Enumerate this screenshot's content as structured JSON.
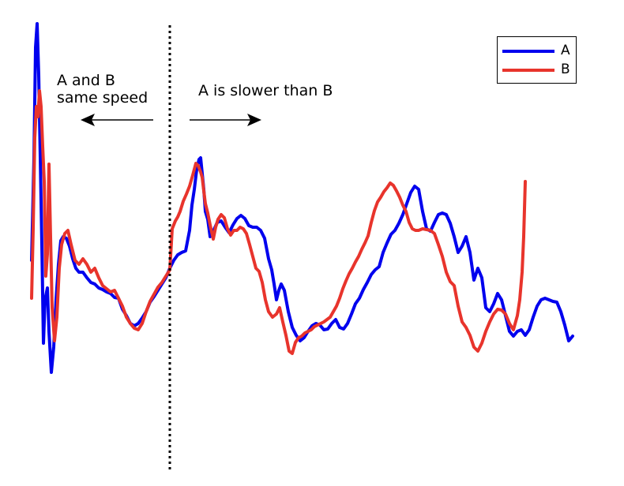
{
  "chart_data": {
    "type": "line",
    "title": "",
    "xlabel": "",
    "ylabel": "",
    "grid": false,
    "legend_position": "top-right",
    "series": [
      {
        "name": "A",
        "color": "#0000ee",
        "points": [
          [
            40,
            330
          ],
          [
            43,
            200
          ],
          [
            45,
            60
          ],
          [
            47,
            30
          ],
          [
            49,
            95
          ],
          [
            51,
            200
          ],
          [
            53,
            310
          ],
          [
            55,
            435
          ],
          [
            57,
            380
          ],
          [
            60,
            365
          ],
          [
            62,
            420
          ],
          [
            65,
            472
          ],
          [
            68,
            440
          ],
          [
            71,
            380
          ],
          [
            74,
            335
          ],
          [
            77,
            305
          ],
          [
            80,
            300
          ],
          [
            84,
            302
          ],
          [
            88,
            312
          ],
          [
            92,
            328
          ],
          [
            96,
            340
          ],
          [
            100,
            345
          ],
          [
            105,
            345
          ],
          [
            110,
            352
          ],
          [
            115,
            358
          ],
          [
            120,
            360
          ],
          [
            125,
            365
          ],
          [
            130,
            367
          ],
          [
            135,
            370
          ],
          [
            140,
            372
          ],
          [
            145,
            377
          ],
          [
            150,
            378
          ],
          [
            155,
            392
          ],
          [
            160,
            400
          ],
          [
            165,
            410
          ],
          [
            170,
            413
          ],
          [
            175,
            410
          ],
          [
            180,
            403
          ],
          [
            185,
            395
          ],
          [
            190,
            383
          ],
          [
            195,
            376
          ],
          [
            200,
            368
          ],
          [
            205,
            360
          ],
          [
            210,
            352
          ],
          [
            215,
            340
          ],
          [
            220,
            330
          ],
          [
            225,
            323
          ],
          [
            230,
            320
          ],
          [
            235,
            318
          ],
          [
            240,
            292
          ],
          [
            243,
            260
          ],
          [
            246,
            240
          ],
          [
            249,
            215
          ],
          [
            252,
            202
          ],
          [
            254,
            200
          ],
          [
            256,
            220
          ],
          [
            258,
            240
          ],
          [
            260,
            268
          ],
          [
            263,
            278
          ],
          [
            266,
            300
          ],
          [
            270,
            293
          ],
          [
            275,
            282
          ],
          [
            280,
            280
          ],
          [
            285,
            288
          ],
          [
            290,
            295
          ],
          [
            295,
            285
          ],
          [
            300,
            277
          ],
          [
            305,
            273
          ],
          [
            310,
            277
          ],
          [
            315,
            286
          ],
          [
            320,
            288
          ],
          [
            325,
            288
          ],
          [
            330,
            292
          ],
          [
            335,
            302
          ],
          [
            340,
            328
          ],
          [
            344,
            342
          ],
          [
            347,
            360
          ],
          [
            350,
            380
          ],
          [
            353,
            368
          ],
          [
            356,
            360
          ],
          [
            360,
            368
          ],
          [
            365,
            395
          ],
          [
            370,
            415
          ],
          [
            375,
            425
          ],
          [
            380,
            432
          ],
          [
            385,
            428
          ],
          [
            390,
            420
          ],
          [
            395,
            413
          ],
          [
            400,
            410
          ],
          [
            405,
            412
          ],
          [
            410,
            418
          ],
          [
            415,
            417
          ],
          [
            420,
            410
          ],
          [
            425,
            405
          ],
          [
            430,
            415
          ],
          [
            435,
            417
          ],
          [
            440,
            410
          ],
          [
            445,
            398
          ],
          [
            450,
            385
          ],
          [
            455,
            378
          ],
          [
            460,
            367
          ],
          [
            465,
            358
          ],
          [
            470,
            348
          ],
          [
            475,
            342
          ],
          [
            480,
            338
          ],
          [
            485,
            320
          ],
          [
            490,
            308
          ],
          [
            495,
            297
          ],
          [
            500,
            292
          ],
          [
            505,
            283
          ],
          [
            510,
            272
          ],
          [
            515,
            258
          ],
          [
            520,
            244
          ],
          [
            525,
            236
          ],
          [
            530,
            240
          ],
          [
            535,
            268
          ],
          [
            540,
            290
          ],
          [
            545,
            293
          ],
          [
            550,
            282
          ],
          [
            555,
            272
          ],
          [
            560,
            270
          ],
          [
            565,
            272
          ],
          [
            570,
            283
          ],
          [
            575,
            300
          ],
          [
            580,
            320
          ],
          [
            585,
            312
          ],
          [
            590,
            300
          ],
          [
            595,
            320
          ],
          [
            600,
            355
          ],
          [
            605,
            340
          ],
          [
            610,
            352
          ],
          [
            615,
            390
          ],
          [
            620,
            395
          ],
          [
            625,
            385
          ],
          [
            630,
            372
          ],
          [
            635,
            380
          ],
          [
            640,
            400
          ],
          [
            645,
            420
          ],
          [
            650,
            426
          ],
          [
            655,
            420
          ],
          [
            660,
            418
          ],
          [
            665,
            425
          ],
          [
            670,
            418
          ],
          [
            675,
            402
          ],
          [
            680,
            388
          ],
          [
            685,
            380
          ],
          [
            690,
            378
          ],
          [
            695,
            380
          ],
          [
            700,
            382
          ],
          [
            705,
            383
          ],
          [
            710,
            395
          ],
          [
            715,
            412
          ],
          [
            720,
            432
          ],
          [
            725,
            426
          ]
        ]
      },
      {
        "name": "B",
        "color": "#e8342c",
        "points": [
          [
            40,
            378
          ],
          [
            42,
            290
          ],
          [
            44,
            175
          ],
          [
            46,
            135
          ],
          [
            48,
            148
          ],
          [
            50,
            115
          ],
          [
            52,
            135
          ],
          [
            54,
            185
          ],
          [
            56,
            230
          ],
          [
            58,
            350
          ],
          [
            60,
            322
          ],
          [
            62,
            208
          ],
          [
            64,
            300
          ],
          [
            66,
            390
          ],
          [
            69,
            432
          ],
          [
            72,
            402
          ],
          [
            75,
            340
          ],
          [
            78,
            310
          ],
          [
            82,
            296
          ],
          [
            86,
            292
          ],
          [
            90,
            310
          ],
          [
            95,
            330
          ],
          [
            100,
            335
          ],
          [
            105,
            328
          ],
          [
            110,
            335
          ],
          [
            115,
            345
          ],
          [
            120,
            340
          ],
          [
            125,
            352
          ],
          [
            130,
            362
          ],
          [
            135,
            366
          ],
          [
            140,
            370
          ],
          [
            145,
            368
          ],
          [
            150,
            378
          ],
          [
            155,
            388
          ],
          [
            160,
            402
          ],
          [
            165,
            410
          ],
          [
            170,
            416
          ],
          [
            175,
            418
          ],
          [
            180,
            410
          ],
          [
            185,
            395
          ],
          [
            190,
            382
          ],
          [
            195,
            373
          ],
          [
            200,
            364
          ],
          [
            205,
            358
          ],
          [
            210,
            350
          ],
          [
            215,
            342
          ],
          [
            218,
            290
          ],
          [
            222,
            280
          ],
          [
            225,
            275
          ],
          [
            228,
            268
          ],
          [
            232,
            255
          ],
          [
            236,
            246
          ],
          [
            240,
            236
          ],
          [
            244,
            222
          ],
          [
            248,
            207
          ],
          [
            251,
            210
          ],
          [
            254,
            218
          ],
          [
            256,
            225
          ],
          [
            258,
            242
          ],
          [
            260,
            258
          ],
          [
            263,
            270
          ],
          [
            266,
            285
          ],
          [
            270,
            303
          ],
          [
            273,
            288
          ],
          [
            276,
            278
          ],
          [
            280,
            272
          ],
          [
            284,
            276
          ],
          [
            288,
            290
          ],
          [
            292,
            298
          ],
          [
            296,
            292
          ],
          [
            300,
            292
          ],
          [
            304,
            288
          ],
          [
            308,
            290
          ],
          [
            312,
            296
          ],
          [
            316,
            310
          ],
          [
            320,
            325
          ],
          [
            324,
            340
          ],
          [
            328,
            344
          ],
          [
            332,
            358
          ],
          [
            336,
            380
          ],
          [
            340,
            395
          ],
          [
            345,
            402
          ],
          [
            350,
            398
          ],
          [
            354,
            390
          ],
          [
            358,
            408
          ],
          [
            362,
            425
          ],
          [
            366,
            445
          ],
          [
            370,
            448
          ],
          [
            374,
            434
          ],
          [
            378,
            428
          ],
          [
            382,
            426
          ],
          [
            386,
            422
          ],
          [
            390,
            420
          ],
          [
            394,
            418
          ],
          [
            398,
            414
          ],
          [
            402,
            412
          ],
          [
            406,
            410
          ],
          [
            410,
            408
          ],
          [
            414,
            405
          ],
          [
            418,
            402
          ],
          [
            422,
            395
          ],
          [
            426,
            388
          ],
          [
            430,
            378
          ],
          [
            434,
            366
          ],
          [
            438,
            356
          ],
          [
            442,
            347
          ],
          [
            446,
            340
          ],
          [
            450,
            332
          ],
          [
            454,
            325
          ],
          [
            458,
            316
          ],
          [
            462,
            308
          ],
          [
            466,
            299
          ],
          [
            470,
            282
          ],
          [
            474,
            267
          ],
          [
            478,
            256
          ],
          [
            482,
            250
          ],
          [
            486,
            243
          ],
          [
            490,
            238
          ],
          [
            494,
            232
          ],
          [
            498,
            235
          ],
          [
            502,
            242
          ],
          [
            506,
            250
          ],
          [
            510,
            260
          ],
          [
            514,
            268
          ],
          [
            518,
            282
          ],
          [
            522,
            290
          ],
          [
            526,
            292
          ],
          [
            530,
            292
          ],
          [
            535,
            290
          ],
          [
            540,
            291
          ],
          [
            545,
            292
          ],
          [
            550,
            296
          ],
          [
            555,
            310
          ],
          [
            560,
            325
          ],
          [
            565,
            345
          ],
          [
            570,
            357
          ],
          [
            575,
            362
          ],
          [
            580,
            388
          ],
          [
            585,
            408
          ],
          [
            590,
            415
          ],
          [
            595,
            425
          ],
          [
            600,
            440
          ],
          [
            605,
            445
          ],
          [
            610,
            435
          ],
          [
            615,
            420
          ],
          [
            620,
            408
          ],
          [
            625,
            398
          ],
          [
            630,
            392
          ],
          [
            635,
            393
          ],
          [
            640,
            398
          ],
          [
            645,
            410
          ],
          [
            650,
            418
          ],
          [
            655,
            400
          ],
          [
            658,
            380
          ],
          [
            661,
            345
          ],
          [
            663,
            300
          ],
          [
            665,
            230
          ]
        ]
      }
    ],
    "annotations": [
      {
        "text_lines": [
          "A and B",
          "same speed"
        ]
      },
      {
        "text_lines": [
          "A is slower than B"
        ]
      }
    ]
  }
}
